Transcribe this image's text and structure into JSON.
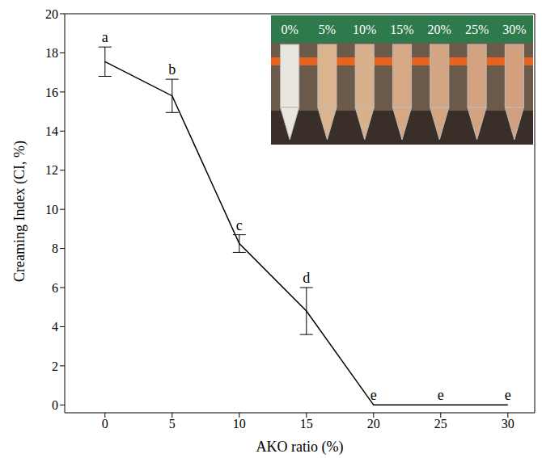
{
  "chart_data": {
    "type": "line",
    "x_label": "AKO ratio (%)",
    "y_label": "Creaming Index (CI, %)",
    "x": [
      0,
      5,
      10,
      15,
      20,
      25,
      30
    ],
    "values": [
      17.55,
      15.8,
      8.25,
      4.8,
      0,
      0,
      0
    ],
    "error": [
      0.75,
      0.85,
      0.45,
      1.2,
      0,
      0,
      0
    ],
    "letters": [
      "a",
      "b",
      "c",
      "d",
      "e",
      "e",
      "e"
    ],
    "color": "#000000",
    "xlim": [
      -3,
      32
    ],
    "xticks": [
      0,
      5,
      10,
      15,
      20,
      25,
      30
    ],
    "ylim": [
      -0.4,
      20
    ],
    "yticks": [
      0,
      2,
      4,
      6,
      8,
      10,
      12,
      14,
      16,
      18,
      20
    ],
    "grid": false,
    "inset_labels": [
      "0%",
      "5%",
      "10%",
      "15%",
      "20%",
      "25%",
      "30%"
    ]
  }
}
